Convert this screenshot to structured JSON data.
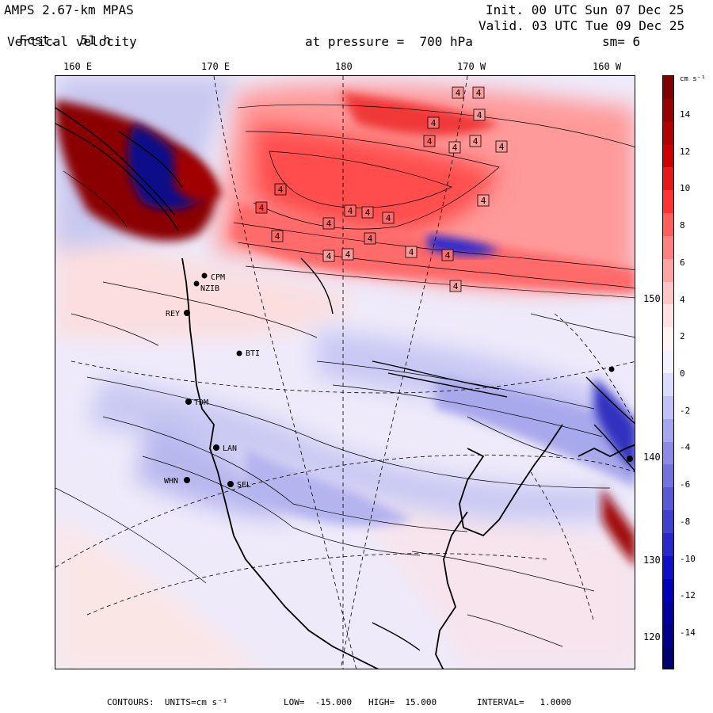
{
  "header": {
    "model": "AMPS 2.67-km MPAS",
    "fcst_label": "Fcst.",
    "fcst_value": "51 h",
    "field": "Vertical velocity",
    "init": "Init. 00 UTC Sun 07 Dec 25",
    "valid": "Valid. 03 UTC Tue 09 Dec 25",
    "pressure": "at pressure =  700 hPa",
    "smoothing": "sm= 6"
  },
  "longitude_labels": [
    "160 E",
    "170 E",
    "180",
    "170 W",
    "160 W"
  ],
  "latitude_labels": [
    "150 W",
    "140 W",
    "130 W",
    "120 W"
  ],
  "stations": [
    "CPM",
    "NZIB",
    "REY",
    "BTI",
    "TDM",
    "LAN",
    "WHN",
    "SEL"
  ],
  "colorbar": {
    "units": "cm s⁻¹",
    "tick_labels": [
      "14",
      "12",
      "10",
      "8",
      "6",
      "4",
      "2",
      "0",
      "-2",
      "-4",
      "-6",
      "-8",
      "-10",
      "-12",
      "-14"
    ],
    "colors": [
      "#800000",
      "#990000",
      "#b30000",
      "#cc0000",
      "#e61919",
      "#ff3333",
      "#ff5c5c",
      "#ff8080",
      "#ffa3a3",
      "#ffc4c4",
      "#ffe1e1",
      "#fff3f3",
      "#f1f1ff",
      "#dcdcff",
      "#c2c2f8",
      "#a6a6f0",
      "#8c8ce8",
      "#7373e0",
      "#5a5ad8",
      "#4141d0",
      "#2828cc",
      "#1010c8",
      "#0000b8",
      "#0000a0",
      "#000088",
      "#000070"
    ]
  },
  "footer": {
    "contours": "CONTOURS:  UNITS=cm s⁻¹",
    "low": "LOW=  -15.000",
    "high": "HIGH=  15.000",
    "interval": "INTERVAL=   1.0000"
  },
  "map_labels": {
    "contour_label": "4"
  }
}
